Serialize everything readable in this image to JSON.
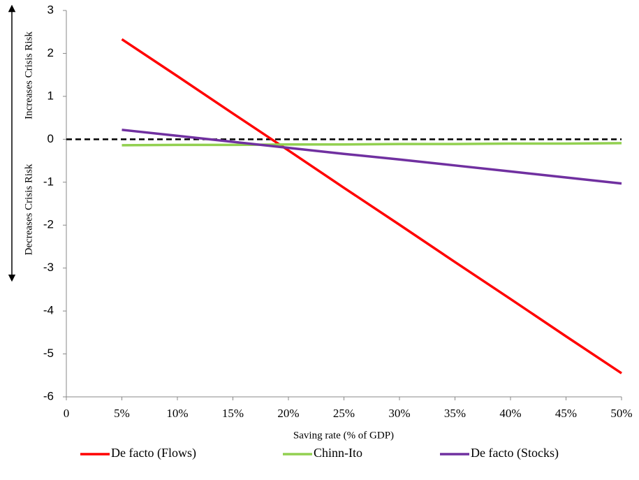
{
  "chart_data": {
    "type": "line",
    "x_label": "Saving rate (% of GDP)",
    "annotations": [
      "Increases Crisis Risk",
      "Decreases Crisis Risk"
    ],
    "x": [
      5,
      10,
      15,
      20,
      25,
      30,
      35,
      40,
      45,
      50
    ],
    "series": [
      {
        "name": "De facto (Flows)",
        "color": "#ff0000",
        "values": [
          2.33,
          1.47,
          0.6,
          -0.26,
          -1.13,
          -1.99,
          -2.86,
          -3.72,
          -4.59,
          -5.45
        ]
      },
      {
        "name": "Chinn-Ito",
        "color": "#92d050",
        "values": [
          -0.14,
          -0.13,
          -0.13,
          -0.12,
          -0.12,
          -0.11,
          -0.11,
          -0.1,
          -0.1,
          -0.09
        ]
      },
      {
        "name": "De facto (Stocks)",
        "color": "#7030a0",
        "values": [
          0.22,
          0.08,
          -0.06,
          -0.2,
          -0.34,
          -0.47,
          -0.61,
          -0.75,
          -0.89,
          -1.03
        ]
      }
    ],
    "reference_line": 0,
    "xlim": [
      0,
      50
    ],
    "xticks": [
      0,
      {
        "value": 5,
        "label": "5%"
      },
      {
        "value": 10,
        "label": "10%"
      },
      {
        "value": 15,
        "label": "15%"
      },
      {
        "value": 20,
        "label": "20%"
      },
      {
        "value": 25,
        "label": "25%"
      },
      {
        "value": 30,
        "label": "30%"
      },
      {
        "value": 35,
        "label": "35%"
      },
      {
        "value": 40,
        "label": "40%"
      },
      {
        "value": 45,
        "label": "45%"
      },
      {
        "value": 50,
        "label": "50%"
      }
    ],
    "ylim": [
      -6,
      3
    ],
    "yticks": [
      -6,
      -5,
      -4,
      -3,
      -2,
      -1,
      0,
      1,
      2,
      3
    ],
    "legend": "bottom"
  }
}
